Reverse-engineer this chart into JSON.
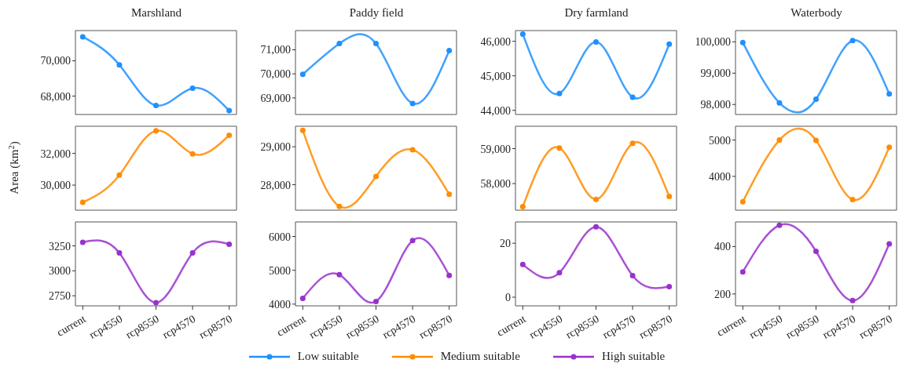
{
  "chart_data": [
    {
      "type": "line",
      "title": "Marshland",
      "categories": [
        null,
        null,
        null,
        null,
        null
      ],
      "marker": "circle",
      "legend": "bottom",
      "tick_labels": "y",
      "ylim": [
        66960,
        71710
      ],
      "yticks": [
        {
          "value": 68000,
          "label": "68,000"
        },
        {
          "value": 70000,
          "label": "70,000"
        }
      ],
      "series": [
        {
          "name": "Low suitable",
          "color": "#1e90ff",
          "values": [
            71360,
            69770,
            67470,
            68450,
            67180
          ]
        }
      ]
    },
    {
      "type": "line",
      "title": "Paddy field",
      "categories": [
        null,
        null,
        null,
        null,
        null
      ],
      "marker": "circle",
      "tick_labels": "y",
      "ylim": [
        68310,
        71800
      ],
      "yticks": [
        {
          "value": 69000,
          "label": "69,000"
        },
        {
          "value": 70000,
          "label": "70,000"
        },
        {
          "value": 71000,
          "label": "71,000"
        }
      ],
      "series": [
        {
          "color": "#1e90ff",
          "values": [
            69980,
            71260,
            71260,
            68770,
            70970
          ]
        }
      ]
    },
    {
      "type": "line",
      "title": "Dry farmland",
      "categories": [
        null,
        null,
        null,
        null,
        null
      ],
      "marker": "circle",
      "tick_labels": "y",
      "ylim": [
        43880,
        46310
      ],
      "yticks": [
        {
          "value": 44000,
          "label": "44,000"
        },
        {
          "value": 45000,
          "label": "45,000"
        },
        {
          "value": 46000,
          "label": "46,000"
        }
      ],
      "series": [
        {
          "color": "#1e90ff",
          "values": [
            46210,
            44490,
            45980,
            44380,
            45920
          ]
        }
      ]
    },
    {
      "type": "line",
      "title": "Waterbody",
      "categories": [
        null,
        null,
        null,
        null,
        null
      ],
      "marker": "circle",
      "tick_labels": "y",
      "ylim": [
        97680,
        100360
      ],
      "yticks": [
        {
          "value": 98000,
          "label": "98,000"
        },
        {
          "value": 99000,
          "label": "99,000"
        },
        {
          "value": 100000,
          "label": "100,000"
        }
      ],
      "series": [
        {
          "color": "#1e90ff",
          "values": [
            99980,
            98050,
            98170,
            100040,
            98340
          ]
        }
      ]
    },
    {
      "type": "line",
      "ylabel": "Area (km$^{2}$)",
      "categories": [
        null,
        null,
        null,
        null,
        null
      ],
      "marker": "circle",
      "legend": "bottom",
      "tick_labels": "y",
      "ylim": [
        28420,
        33710
      ],
      "yticks": [
        {
          "value": 30000,
          "label": "30,000"
        },
        {
          "value": 32000,
          "label": "32,000"
        }
      ],
      "series": [
        {
          "name": "Medium suitable",
          "color": "#ff8c00",
          "values": [
            28910,
            30630,
            33430,
            31970,
            33140
          ]
        }
      ]
    },
    {
      "type": "line",
      "categories": [
        null,
        null,
        null,
        null,
        null
      ],
      "marker": "circle",
      "tick_labels": "y",
      "ylim": [
        27330,
        29540
      ],
      "yticks": [
        {
          "value": 28000,
          "label": "28,000"
        },
        {
          "value": 29000,
          "label": "29,000"
        }
      ],
      "series": [
        {
          "color": "#ff8c00",
          "values": [
            29430,
            27430,
            28220,
            28920,
            27750
          ]
        }
      ]
    },
    {
      "type": "line",
      "categories": [
        null,
        null,
        null,
        null,
        null
      ],
      "marker": "circle",
      "tick_labels": "y",
      "ylim": [
        57240,
        59640
      ],
      "yticks": [
        {
          "value": 58000,
          "label": "58,000"
        },
        {
          "value": 59000,
          "label": "59,000"
        }
      ],
      "series": [
        {
          "color": "#ff8c00",
          "values": [
            57340,
            59020,
            57550,
            59150,
            57630
          ]
        }
      ]
    },
    {
      "type": "line",
      "categories": [
        null,
        null,
        null,
        null,
        null
      ],
      "marker": "circle",
      "tick_labels": "y",
      "ylim": [
        3070,
        5380
      ],
      "yticks": [
        4000,
        5000
      ],
      "series": [
        {
          "color": "#ff8c00",
          "values": [
            3300,
            5000,
            4990,
            3360,
            4800
          ]
        }
      ]
    },
    {
      "type": "line",
      "categories": [
        "current",
        "rcp4550",
        "rcp8550",
        "rcp4570",
        "rcp8570"
      ],
      "marker": "circle",
      "legend": "bottom",
      "ylim": [
        2649,
        3490
      ],
      "yticks": [
        2750,
        3000,
        3250
      ],
      "series": [
        {
          "name": "High suitable",
          "color": "#9932cc",
          "values": [
            3286,
            3180,
            2680,
            3180,
            3266
          ]
        }
      ]
    },
    {
      "type": "line",
      "categories": [
        "current",
        "rcp4550",
        "rcp8550",
        "rcp4570",
        "rcp8570"
      ],
      "marker": "circle",
      "ylim": [
        3950,
        6430
      ],
      "yticks": [
        4000,
        5000,
        6000
      ],
      "series": [
        {
          "color": "#9932cc",
          "values": [
            4170,
            4870,
            4080,
            5880,
            4850
          ]
        }
      ]
    },
    {
      "type": "line",
      "categories": [
        "current",
        "rcp4550",
        "rcp8550",
        "rcp4570",
        "rcp8570"
      ],
      "marker": "circle",
      "ylim": [
        -3.2,
        27.9
      ],
      "yticks": [
        0,
        20
      ],
      "series": [
        {
          "color": "#9932cc",
          "values": [
            12.1,
            9.1,
            26.1,
            8.0,
            3.9
          ]
        }
      ]
    },
    {
      "type": "line",
      "categories": [
        "current",
        "rcp4550",
        "rcp8550",
        "rcp4570",
        "rcp8570"
      ],
      "marker": "circle",
      "ylim": [
        150,
        504
      ],
      "yticks": [
        200,
        400
      ],
      "series": [
        {
          "color": "#9932cc",
          "values": [
            293,
            490,
            380,
            172,
            411
          ]
        }
      ]
    }
  ]
}
